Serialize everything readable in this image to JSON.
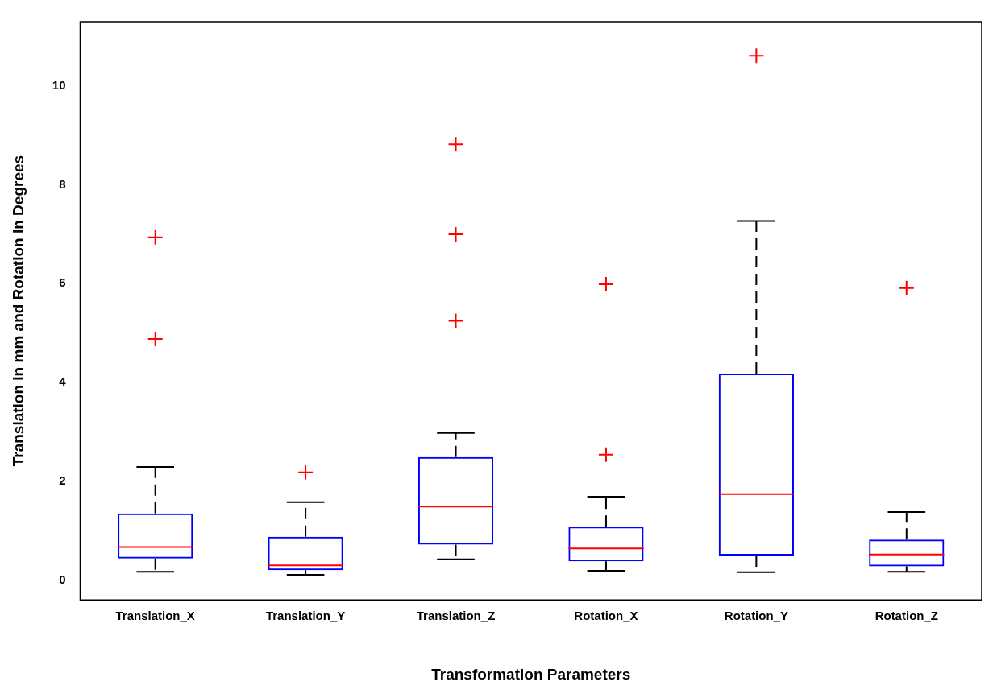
{
  "chart_data": {
    "type": "box",
    "xlabel": "Transformation Parameters",
    "ylabel": "Translation in mm and Rotation in Degrees",
    "categories": [
      "Translation_X",
      "Translation_Y",
      "Translation_Z",
      "Rotation_X",
      "Rotation_Y",
      "Rotation_Z"
    ],
    "color": "#0000ff",
    "marker": "cross",
    "line_style": "dashed",
    "grid": false,
    "legend": false,
    "ylim": [
      -0.4,
      11.3
    ],
    "yticks": [
      0,
      2,
      4,
      6,
      8,
      10
    ],
    "boxes": [
      {
        "low": 0.17,
        "q1": 0.44,
        "median": 0.67,
        "q3": 1.35,
        "high": 2.29,
        "outliers": [
          4.88,
          6.94
        ]
      },
      {
        "low": 0.11,
        "q1": 0.2,
        "median": 0.3,
        "q3": 0.88,
        "high": 1.58,
        "outliers": [
          2.18
        ]
      },
      {
        "low": 0.42,
        "q1": 0.72,
        "median": 1.49,
        "q3": 2.49,
        "high": 2.98,
        "outliers": [
          5.25,
          7.0,
          8.82
        ]
      },
      {
        "low": 0.19,
        "q1": 0.38,
        "median": 0.64,
        "q3": 1.08,
        "high": 1.69,
        "outliers": [
          2.54,
          5.99
        ]
      },
      {
        "low": 0.16,
        "q1": 0.5,
        "median": 1.74,
        "q3": 4.18,
        "high": 7.27,
        "outliers": [
          10.61
        ]
      },
      {
        "low": 0.17,
        "q1": 0.28,
        "median": 0.52,
        "q3": 0.82,
        "high": 1.38,
        "outliers": [
          5.91
        ]
      }
    ]
  }
}
